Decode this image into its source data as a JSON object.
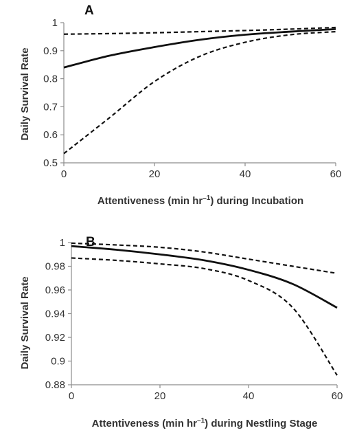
{
  "chart_data": [
    {
      "type": "line",
      "panel_label": "A",
      "title": "",
      "xlabel": "Attentiveness (min hr",
      "xlabel_sup": "–1",
      "xlabel_suffix": ") during Incubation",
      "ylabel": "Daily Survival Rate",
      "xlim": [
        0,
        60
      ],
      "ylim": [
        0.5,
        1
      ],
      "xticks": [
        0,
        20,
        40,
        60
      ],
      "xtick_labels": [
        "0",
        "20",
        "40",
        "60"
      ],
      "yticks": [
        0.5,
        0.6,
        0.7,
        0.8,
        0.9,
        1
      ],
      "ytick_labels": [
        "0.5",
        "0.6",
        "0.7",
        "0.8",
        "0.9",
        "1"
      ],
      "grid": false,
      "legend": "none",
      "x": [
        0,
        10,
        20,
        30,
        40,
        50,
        60
      ],
      "series": [
        {
          "style": "solid",
          "values": [
            0.84,
            0.882,
            0.913,
            0.939,
            0.957,
            0.968,
            0.977
          ]
        },
        {
          "style": "dashed",
          "values": [
            0.959,
            0.961,
            0.964,
            0.968,
            0.972,
            0.977,
            0.983
          ]
        },
        {
          "style": "dashed",
          "values": [
            0.533,
            0.66,
            0.79,
            0.88,
            0.93,
            0.957,
            0.968
          ]
        }
      ]
    },
    {
      "type": "line",
      "panel_label": "B",
      "title": "",
      "xlabel": "Attentiveness (min hr",
      "xlabel_sup": "–1",
      "xlabel_suffix": ") during Nestling Stage",
      "ylabel": "Daily Survival Rate",
      "xlim": [
        0,
        60
      ],
      "ylim": [
        0.88,
        1
      ],
      "xticks": [
        0,
        20,
        40,
        60
      ],
      "xtick_labels": [
        "0",
        "20",
        "40",
        "60"
      ],
      "yticks": [
        0.88,
        0.9,
        0.92,
        0.94,
        0.96,
        0.98,
        1
      ],
      "ytick_labels": [
        "0.88",
        "0.9",
        "0.92",
        "0.94",
        "0.96",
        "0.98",
        "1"
      ],
      "grid": false,
      "legend": "none",
      "x": [
        0,
        10,
        20,
        30,
        40,
        50,
        60
      ],
      "series": [
        {
          "style": "solid",
          "values": [
            0.997,
            0.994,
            0.99,
            0.985,
            0.977,
            0.965,
            0.945
          ]
        },
        {
          "style": "dashed",
          "values": [
            0.9995,
            0.998,
            0.996,
            0.992,
            0.986,
            0.98,
            0.974
          ]
        },
        {
          "style": "dashed",
          "values": [
            0.987,
            0.985,
            0.982,
            0.978,
            0.968,
            0.945,
            0.888
          ]
        }
      ]
    }
  ]
}
